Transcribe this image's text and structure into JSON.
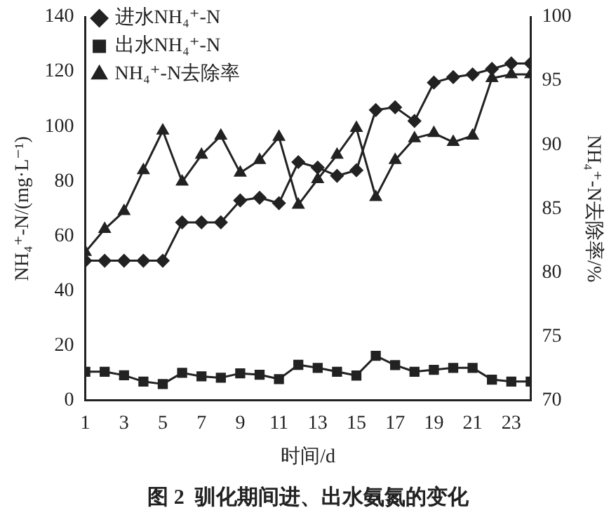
{
  "chart_data": {
    "type": "line",
    "title": "图 2  驯化期间进、出水氨氮的变化",
    "xlabel": "时间/d",
    "ylabel": "NH₄⁺-N/(mg·L⁻¹)",
    "y2label": "NH₄⁺-N去除率/%",
    "x": [
      1,
      2,
      3,
      4,
      5,
      6,
      7,
      8,
      9,
      10,
      11,
      12,
      13,
      14,
      15,
      16,
      17,
      18,
      19,
      20,
      21,
      22,
      23,
      24
    ],
    "xlim": [
      1,
      24
    ],
    "xticks": [
      1,
      3,
      5,
      7,
      9,
      11,
      13,
      15,
      17,
      19,
      21,
      23
    ],
    "ylim": [
      0,
      140
    ],
    "yticks": [
      0,
      20,
      40,
      60,
      80,
      100,
      120,
      140
    ],
    "y2lim": [
      70,
      100
    ],
    "y2ticks": [
      70,
      75,
      80,
      85,
      90,
      95,
      100
    ],
    "grid": false,
    "legend": "top left",
    "line_style": "solid",
    "series": [
      {
        "name": "进水NH₄⁺-N",
        "color": "#222222",
        "marker": "diamond",
        "values": [
          51,
          51,
          51,
          51,
          51,
          65,
          65,
          65,
          73,
          74,
          72,
          87,
          85,
          82,
          84,
          106,
          107,
          102,
          116,
          118,
          119,
          121,
          123,
          123
        ]
      },
      {
        "name": "出水NH₄⁺-N",
        "color": "#222222",
        "marker": "square",
        "values": [
          10.5,
          10.5,
          9.2,
          6.9,
          6.0,
          10.1,
          8.8,
          8.3,
          9.9,
          9.4,
          7.8,
          13.0,
          11.9,
          10.5,
          9.1,
          16.3,
          12.9,
          10.5,
          11.2,
          11.9,
          11.9,
          7.6,
          6.9,
          6.9
        ]
      },
      {
        "name": "NH₄⁺-N去除率",
        "color": "#222222",
        "marker": "triangle",
        "axis": "y2",
        "values": [
          81.6,
          83.4,
          84.8,
          88.0,
          91.1,
          87.1,
          89.2,
          90.7,
          87.8,
          88.8,
          90.6,
          85.3,
          87.3,
          89.2,
          91.3,
          85.9,
          88.8,
          90.5,
          90.9,
          90.2,
          90.7,
          95.2,
          95.5,
          95.5
        ]
      }
    ]
  }
}
